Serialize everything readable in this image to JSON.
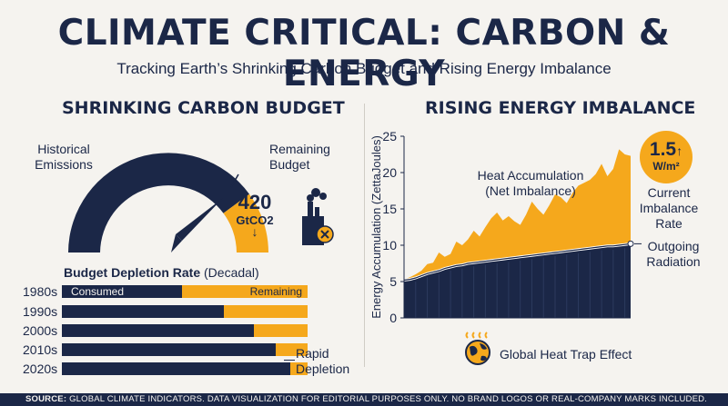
{
  "title": "CLIMATE CRITICAL: CARBON & ENERGY",
  "subtitle": "Tracking Earth’s Shrinking Carbon Budget and Rising Energy Imbalance",
  "left": {
    "heading": "SHRINKING CARBON BUDGET",
    "historical_label": [
      "Historical",
      "Emissions"
    ],
    "remaining_label": [
      "Remaining",
      "Budget"
    ],
    "remaining_value": "420",
    "remaining_unit": "GtCO2",
    "remaining_arrow": "↓",
    "factory_icon": "factory-icon",
    "bars_title_bold": "Budget Depletion Rate",
    "bars_title_normal": "(Decadal)",
    "consumed_label": "Consumed",
    "remaining_bar_label": "Remaining",
    "rapid_label": [
      "Rapid",
      "Depletion"
    ]
  },
  "right": {
    "heading": "RISING ENERGY IMBALANCE",
    "heat_label": [
      "Heat Accumulation",
      "(Net Imbalance)"
    ],
    "rate_value": "1.5",
    "rate_arrow": "↑",
    "rate_unit": "W/m²",
    "current_label": [
      "Current",
      "Imbalance",
      "Rate"
    ],
    "outgoing_label": [
      "Outgoing",
      "Radiation"
    ],
    "global_label": "Global Heat Trap Effect",
    "globe_icon": "globe-heat-icon"
  },
  "footer": {
    "source_label": "SOURCE:",
    "text": "GLOBAL CLIMATE INDICATORS. DATA VISUALIZATION FOR EDITORIAL PURPOSES ONLY. NO BRAND LOGOS OR REAL-COMPANY MARKS INCLUDED."
  },
  "colors": {
    "navy": "#1b2747",
    "orange": "#f5a81c",
    "background": "#f5f3ef"
  },
  "chart_data": [
    {
      "type": "gauge",
      "title": "SHRINKING CARBON BUDGET",
      "consumed_fraction": 0.8,
      "remaining_value": 420,
      "remaining_unit": "GtCO2"
    },
    {
      "type": "bar",
      "title": "Budget Depletion Rate (Decadal)",
      "categories": [
        "1980s",
        "1990s",
        "2000s",
        "2010s",
        "2020s"
      ],
      "series": [
        {
          "name": "Consumed",
          "values": [
            0.49,
            0.66,
            0.78,
            0.87,
            0.93
          ]
        },
        {
          "name": "Remaining",
          "values": [
            0.51,
            0.34,
            0.22,
            0.13,
            0.07
          ]
        }
      ],
      "stacked": true,
      "orientation": "horizontal"
    },
    {
      "type": "area",
      "title": "RISING ENERGY IMBALANCE",
      "ylabel": "Energy Accumulation (ZettaJoules)",
      "ylim": [
        0,
        25
      ],
      "yticks": [
        0,
        5,
        10,
        15,
        20,
        25
      ],
      "x": [
        0,
        1,
        2,
        3,
        4,
        5,
        6,
        7,
        8,
        9,
        10,
        11,
        12,
        13,
        14,
        15,
        16,
        17,
        18,
        19,
        20,
        21,
        22,
        23,
        24,
        25,
        26,
        27,
        28,
        29,
        30,
        31,
        32,
        33,
        34,
        35,
        36,
        37,
        38,
        39
      ],
      "series": [
        {
          "name": "Outgoing Radiation",
          "values": [
            5.2,
            5.3,
            5.5,
            5.8,
            6.1,
            6.3,
            6.5,
            6.8,
            7.0,
            7.2,
            7.3,
            7.5,
            7.6,
            7.7,
            7.8,
            7.9,
            8.0,
            8.1,
            8.2,
            8.3,
            8.4,
            8.5,
            8.6,
            8.7,
            8.8,
            8.9,
            9.0,
            9.1,
            9.2,
            9.3,
            9.4,
            9.5,
            9.6,
            9.7,
            9.8,
            9.9,
            9.9,
            10.0,
            10.1,
            10.2
          ]
        },
        {
          "name": "Heat Accumulation",
          "values": [
            5.3,
            5.6,
            6.0,
            6.5,
            7.4,
            7.6,
            9.0,
            8.4,
            8.8,
            10.5,
            10.0,
            10.8,
            12.0,
            11.2,
            12.5,
            13.7,
            14.5,
            13.4,
            14.0,
            13.3,
            12.8,
            14.2,
            16.0,
            15.0,
            14.2,
            15.5,
            17.0,
            16.6,
            15.8,
            17.2,
            18.2,
            18.6,
            19.0,
            19.8,
            21.2,
            19.5,
            20.5,
            23.2,
            22.5,
            22.3
          ]
        }
      ]
    }
  ]
}
